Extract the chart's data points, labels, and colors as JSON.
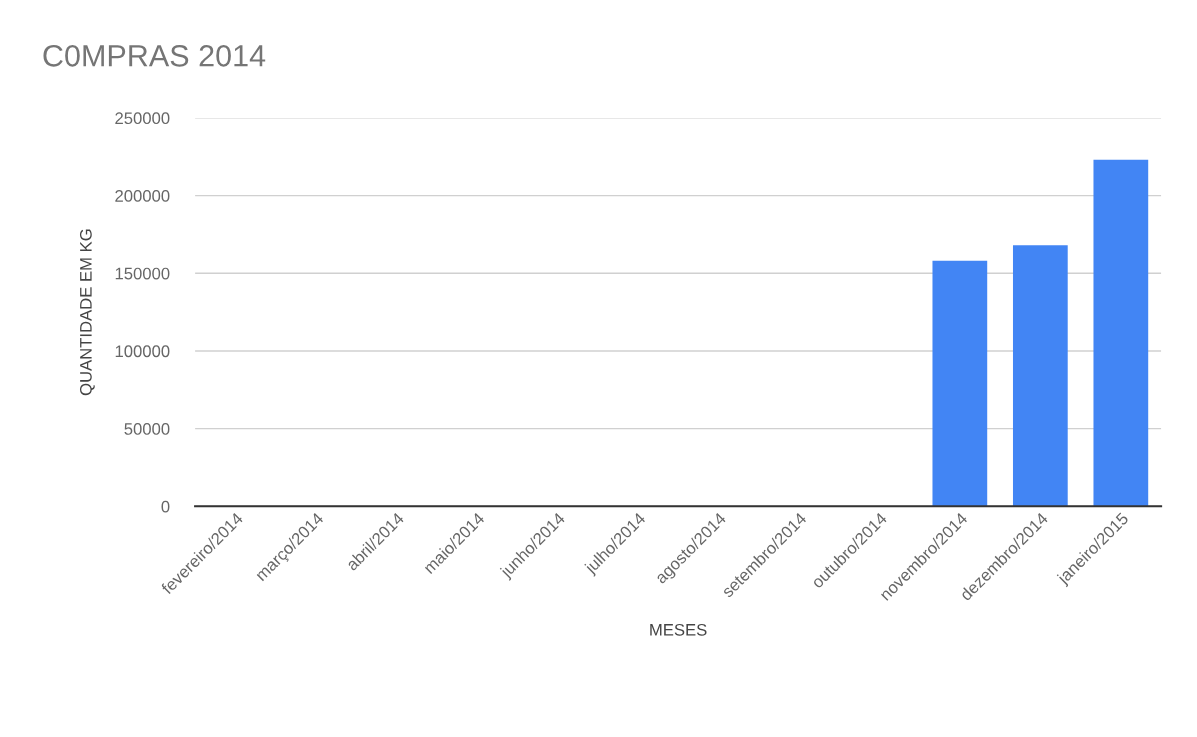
{
  "chart_data": {
    "type": "bar",
    "title": "C0MPRAS 2014",
    "xlabel": "MESES",
    "ylabel": "QUANTIDADE EM KG",
    "categories": [
      "fevereiro/2014",
      "março/2014",
      "abril/2014",
      "maio/2014",
      "junho/2014",
      "julho/2014",
      "agosto/2014",
      "setembro/2014",
      "outubro/2014",
      "novembro/2014",
      "dezembro/2014",
      "janeiro/2015"
    ],
    "values": [
      0,
      0,
      0,
      0,
      0,
      0,
      0,
      0,
      0,
      158000,
      168000,
      223000
    ],
    "color": "#4285f4",
    "ylim": [
      0,
      250000
    ],
    "yticks": [
      0,
      50000,
      100000,
      150000,
      200000,
      250000
    ],
    "grid": "y",
    "legend": false
  }
}
